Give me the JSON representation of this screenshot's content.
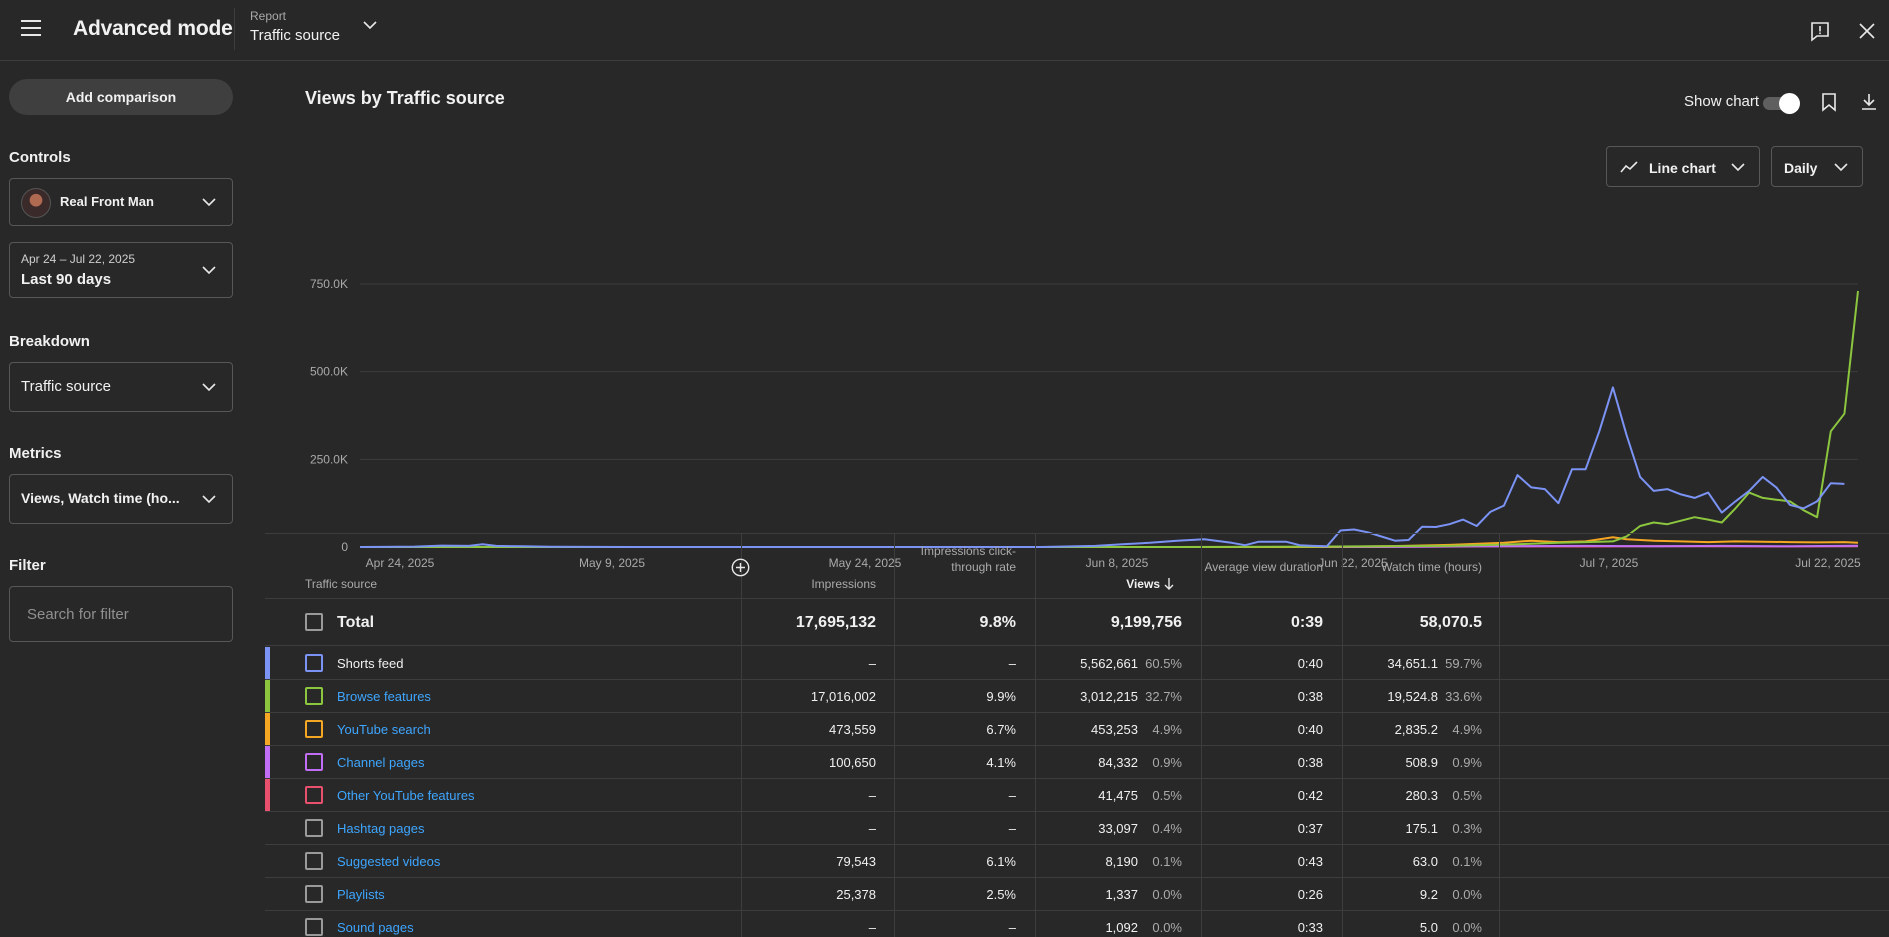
{
  "header": {
    "title": "Advanced mode",
    "report_label": "Report",
    "report_value": "Traffic source"
  },
  "sidebar": {
    "add_comparison": "Add comparison",
    "controls_label": "Controls",
    "channel_name": "Real Front Man",
    "date_range_small": "Apr 24 – Jul 22, 2025",
    "date_range_main": "Last 90 days",
    "breakdown_label": "Breakdown",
    "breakdown_value": "Traffic source",
    "metrics_label": "Metrics",
    "metrics_value": "Views, Watch time (ho...",
    "filter_label": "Filter",
    "filter_placeholder": "Search for filter"
  },
  "chart_panel": {
    "title": "Views by Traffic source",
    "show_chart_label": "Show chart",
    "show_chart_on": true,
    "chart_type_label": "Line chart",
    "period_label": "Daily"
  },
  "chart_data": {
    "type": "line",
    "title": "Views by Traffic source",
    "x_tick_labels": [
      "Apr 24, 2025",
      "May 9, 2025",
      "May 24, 2025",
      "Jun 8, 2025",
      "Jun 22, 2025",
      "Jul 7, 2025",
      "Jul 22, 2025"
    ],
    "y_tick_labels": [
      "750.0K",
      "500.0K",
      "250.0K",
      "0"
    ],
    "ylim": [
      0,
      750000
    ],
    "x_range_days": [
      0,
      89
    ],
    "grid": true,
    "series": [
      {
        "name": "Shorts feed",
        "color": "#7b93f5",
        "points": [
          [
            0,
            0
          ],
          [
            4,
            1000
          ],
          [
            6,
            4000
          ],
          [
            8,
            3000
          ],
          [
            9,
            8000
          ],
          [
            10,
            3000
          ],
          [
            12,
            2000
          ],
          [
            14,
            500
          ],
          [
            20,
            0
          ],
          [
            50,
            0
          ],
          [
            54,
            3000
          ],
          [
            56,
            8000
          ],
          [
            58,
            12000
          ],
          [
            60,
            18000
          ],
          [
            62,
            22000
          ],
          [
            64,
            12000
          ],
          [
            65,
            5000
          ],
          [
            66,
            15000
          ],
          [
            68,
            15000
          ],
          [
            69,
            5000
          ],
          [
            70,
            3000
          ],
          [
            71,
            2000
          ],
          [
            72,
            47000
          ],
          [
            73,
            50000
          ],
          [
            74,
            42000
          ],
          [
            75,
            30000
          ],
          [
            76,
            18000
          ],
          [
            77,
            20000
          ],
          [
            78,
            58000
          ],
          [
            79,
            57000
          ],
          [
            80,
            65000
          ],
          [
            81,
            78000
          ],
          [
            82,
            60000
          ],
          [
            83,
            100000
          ],
          [
            84,
            118000
          ],
          [
            85,
            205000
          ],
          [
            86,
            170000
          ],
          [
            87,
            165000
          ],
          [
            88,
            125000
          ],
          [
            89,
            222000
          ],
          [
            90,
            222000
          ],
          [
            91,
            330000
          ],
          [
            92,
            455000
          ],
          [
            93,
            320000
          ],
          [
            94,
            200000
          ],
          [
            95,
            160000
          ],
          [
            96,
            165000
          ],
          [
            97,
            150000
          ],
          [
            98,
            140000
          ],
          [
            99,
            155000
          ],
          [
            100,
            98000
          ],
          [
            101,
            130000
          ],
          [
            102,
            160000
          ],
          [
            103,
            200000
          ],
          [
            104,
            170000
          ],
          [
            105,
            120000
          ],
          [
            106,
            110000
          ],
          [
            107,
            130000
          ],
          [
            108,
            182000
          ],
          [
            109,
            180000
          ]
        ]
      },
      {
        "name": "Browse features",
        "color": "#8cc63f",
        "points": [
          [
            0,
            0
          ],
          [
            60,
            0
          ],
          [
            70,
            1000
          ],
          [
            80,
            3000
          ],
          [
            85,
            8000
          ],
          [
            88,
            12000
          ],
          [
            90,
            14000
          ],
          [
            92,
            16000
          ],
          [
            93,
            30000
          ],
          [
            94,
            60000
          ],
          [
            95,
            70000
          ],
          [
            96,
            65000
          ],
          [
            97,
            75000
          ],
          [
            98,
            85000
          ],
          [
            99,
            78000
          ],
          [
            100,
            70000
          ],
          [
            101,
            110000
          ],
          [
            102,
            155000
          ],
          [
            103,
            140000
          ],
          [
            104,
            135000
          ],
          [
            105,
            130000
          ],
          [
            106,
            105000
          ],
          [
            107,
            85000
          ],
          [
            108,
            330000
          ],
          [
            109,
            380000
          ],
          [
            110,
            730000
          ]
        ]
      },
      {
        "name": "YouTube search",
        "color": "#f5a623",
        "points": [
          [
            0,
            0
          ],
          [
            70,
            0
          ],
          [
            75,
            2000
          ],
          [
            80,
            6000
          ],
          [
            84,
            12000
          ],
          [
            86,
            18000
          ],
          [
            88,
            14000
          ],
          [
            90,
            16000
          ],
          [
            92,
            28000
          ],
          [
            93,
            22000
          ],
          [
            95,
            18000
          ],
          [
            97,
            16000
          ],
          [
            99,
            14000
          ],
          [
            101,
            16000
          ],
          [
            103,
            15000
          ],
          [
            105,
            14000
          ],
          [
            107,
            13000
          ],
          [
            109,
            14000
          ],
          [
            110,
            12000
          ]
        ]
      },
      {
        "name": "Channel pages",
        "color": "#c06ef5",
        "points": [
          [
            0,
            0
          ],
          [
            75,
            0
          ],
          [
            80,
            1500
          ],
          [
            85,
            2500
          ],
          [
            90,
            3000
          ],
          [
            95,
            2000
          ],
          [
            100,
            3000
          ],
          [
            105,
            2000
          ],
          [
            110,
            3500
          ]
        ]
      },
      {
        "name": "Other YouTube features",
        "color": "#e8506d",
        "points": [
          [
            0,
            0
          ],
          [
            75,
            0
          ],
          [
            80,
            1000
          ],
          [
            85,
            2000
          ],
          [
            90,
            1500
          ],
          [
            95,
            2500
          ],
          [
            100,
            2000
          ],
          [
            105,
            1500
          ],
          [
            110,
            2500
          ]
        ]
      }
    ]
  },
  "table": {
    "headers": {
      "source": "Traffic source",
      "impressions": "Impressions",
      "ctr": "Impressions click-through rate",
      "views": "Views",
      "avd": "Average view duration",
      "watch_time": "Watch time (hours)"
    },
    "total": {
      "label": "Total",
      "impressions": "17,695,132",
      "ctr": "9.8%",
      "views": "9,199,756",
      "avd": "0:39",
      "watch_time": "58,070.5"
    },
    "rows": [
      {
        "name": "Shorts feed",
        "color": "#7b93f5",
        "link": false,
        "impressions": "–",
        "ctr": "–",
        "views": "5,562,661",
        "views_pct": "60.5%",
        "avd": "0:40",
        "watch_time": "34,651.1",
        "watch_pct": "59.7%"
      },
      {
        "name": "Browse features",
        "color": "#8cc63f",
        "link": true,
        "impressions": "17,016,002",
        "ctr": "9.9%",
        "views": "3,012,215",
        "views_pct": "32.7%",
        "avd": "0:38",
        "watch_time": "19,524.8",
        "watch_pct": "33.6%"
      },
      {
        "name": "YouTube search",
        "color": "#f5a623",
        "link": true,
        "impressions": "473,559",
        "ctr": "6.7%",
        "views": "453,253",
        "views_pct": "4.9%",
        "avd": "0:40",
        "watch_time": "2,835.2",
        "watch_pct": "4.9%"
      },
      {
        "name": "Channel pages",
        "color": "#c06ef5",
        "link": true,
        "impressions": "100,650",
        "ctr": "4.1%",
        "views": "84,332",
        "views_pct": "0.9%",
        "avd": "0:38",
        "watch_time": "508.9",
        "watch_pct": "0.9%"
      },
      {
        "name": "Other YouTube features",
        "color": "#e8506d",
        "link": true,
        "impressions": "–",
        "ctr": "–",
        "views": "41,475",
        "views_pct": "0.5%",
        "avd": "0:42",
        "watch_time": "280.3",
        "watch_pct": "0.5%"
      },
      {
        "name": "Hashtag pages",
        "color": "",
        "link": true,
        "impressions": "–",
        "ctr": "–",
        "views": "33,097",
        "views_pct": "0.4%",
        "avd": "0:37",
        "watch_time": "175.1",
        "watch_pct": "0.3%"
      },
      {
        "name": "Suggested videos",
        "color": "",
        "link": true,
        "impressions": "79,543",
        "ctr": "6.1%",
        "views": "8,190",
        "views_pct": "0.1%",
        "avd": "0:43",
        "watch_time": "63.0",
        "watch_pct": "0.1%"
      },
      {
        "name": "Playlists",
        "color": "",
        "link": true,
        "impressions": "25,378",
        "ctr": "2.5%",
        "views": "1,337",
        "views_pct": "0.0%",
        "avd": "0:26",
        "watch_time": "9.2",
        "watch_pct": "0.0%"
      },
      {
        "name": "Sound pages",
        "color": "",
        "link": true,
        "impressions": "–",
        "ctr": "–",
        "views": "1,092",
        "views_pct": "0.0%",
        "avd": "0:33",
        "watch_time": "5.0",
        "watch_pct": "0.0%"
      }
    ]
  }
}
